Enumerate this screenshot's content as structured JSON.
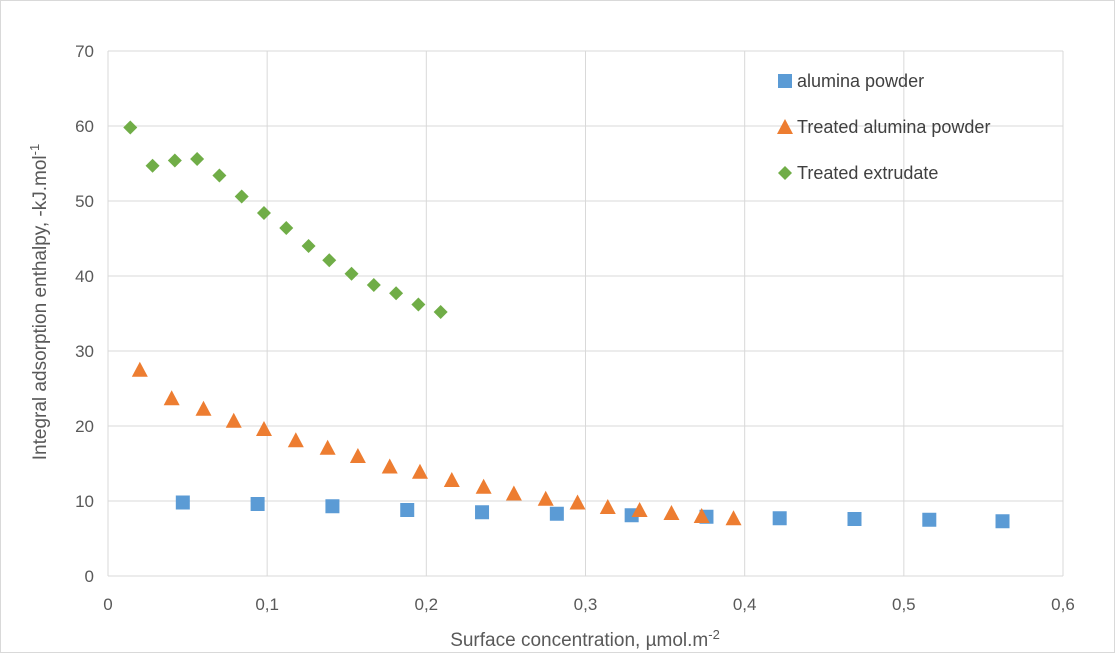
{
  "chart_data": {
    "type": "scatter",
    "xlabel": "Surface concentration, µmol.m",
    "xlabel_sup": "-2",
    "ylabel": "Integral adsorption enthalpy, -kJ.mol",
    "ylabel_sup": "-1",
    "xlim": [
      0,
      0.6
    ],
    "ylim": [
      0,
      70
    ],
    "x_ticks": [
      "0",
      "0,1",
      "0,2",
      "0,3",
      "0,4",
      "0,5",
      "0,6"
    ],
    "y_ticks": [
      "0",
      "10",
      "20",
      "30",
      "40",
      "50",
      "60",
      "70"
    ],
    "grid": true,
    "legend_position": "top-right",
    "series": [
      {
        "name": "alumina powder",
        "marker": "square",
        "color": "#5B9BD5",
        "points": [
          [
            0.047,
            9.8
          ],
          [
            0.094,
            9.6
          ],
          [
            0.141,
            9.3
          ],
          [
            0.188,
            8.8
          ],
          [
            0.235,
            8.5
          ],
          [
            0.282,
            8.3
          ],
          [
            0.329,
            8.1
          ],
          [
            0.376,
            7.9
          ],
          [
            0.422,
            7.7
          ],
          [
            0.469,
            7.6
          ],
          [
            0.516,
            7.5
          ],
          [
            0.562,
            7.3
          ]
        ]
      },
      {
        "name": "Treated alumina powder",
        "marker": "triangle",
        "color": "#ED7D31",
        "points": [
          [
            0.02,
            27.5
          ],
          [
            0.04,
            23.7
          ],
          [
            0.06,
            22.3
          ],
          [
            0.079,
            20.7
          ],
          [
            0.098,
            19.6
          ],
          [
            0.118,
            18.1
          ],
          [
            0.138,
            17.1
          ],
          [
            0.157,
            16.0
          ],
          [
            0.177,
            14.6
          ],
          [
            0.196,
            13.9
          ],
          [
            0.216,
            12.8
          ],
          [
            0.236,
            11.9
          ],
          [
            0.255,
            11.0
          ],
          [
            0.275,
            10.3
          ],
          [
            0.295,
            9.8
          ],
          [
            0.314,
            9.2
          ],
          [
            0.334,
            8.8
          ],
          [
            0.354,
            8.4
          ],
          [
            0.373,
            8.0
          ],
          [
            0.393,
            7.7
          ]
        ]
      },
      {
        "name": "Treated extrudate",
        "marker": "diamond",
        "color": "#70AD47",
        "points": [
          [
            0.014,
            59.8
          ],
          [
            0.028,
            54.7
          ],
          [
            0.042,
            55.4
          ],
          [
            0.056,
            55.6
          ],
          [
            0.07,
            53.4
          ],
          [
            0.084,
            50.6
          ],
          [
            0.098,
            48.4
          ],
          [
            0.112,
            46.4
          ],
          [
            0.126,
            44.0
          ],
          [
            0.139,
            42.1
          ],
          [
            0.153,
            40.3
          ],
          [
            0.167,
            38.8
          ],
          [
            0.181,
            37.7
          ],
          [
            0.195,
            36.2
          ],
          [
            0.209,
            35.2
          ]
        ]
      }
    ]
  }
}
